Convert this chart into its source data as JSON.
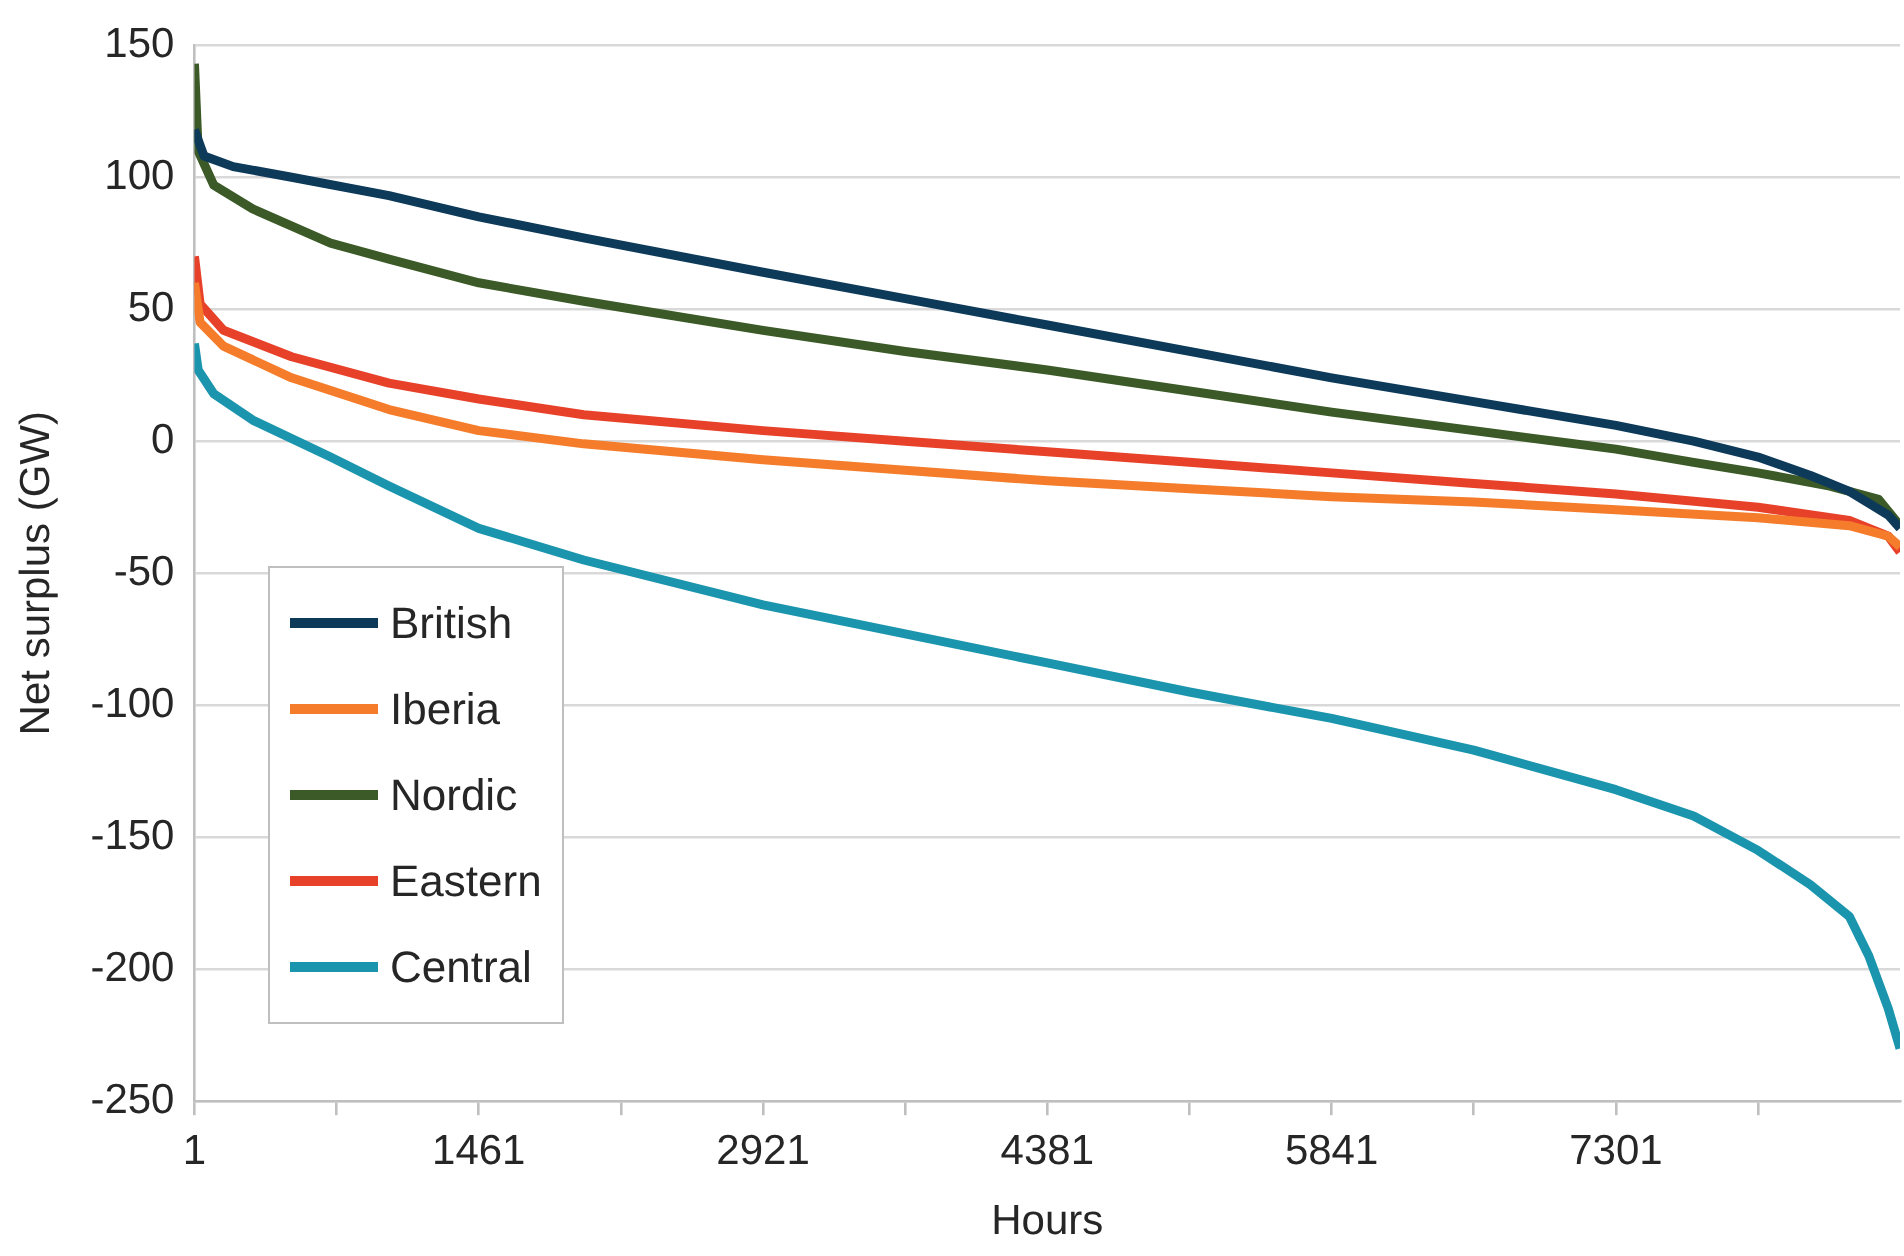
{
  "chart_data": {
    "type": "line",
    "xlabel": "Hours",
    "ylabel": "Net surplus (GW)",
    "xlim": [
      1,
      8760
    ],
    "xticks": [
      1,
      {
        "value": 731,
        "label": null
      },
      1461,
      {
        "value": 2191,
        "label": null
      },
      2921,
      {
        "value": 3651,
        "label": null
      },
      4381,
      {
        "value": 5111,
        "label": null
      },
      5841,
      {
        "value": 6571,
        "label": null
      },
      7301,
      {
        "value": 8031,
        "label": null
      }
    ],
    "ylim": [
      -250,
      150
    ],
    "yticks": [
      -250,
      -200,
      -150,
      -100,
      -50,
      0,
      50,
      100,
      150
    ],
    "grid": "y",
    "legend": "bottom left",
    "marker": "none",
    "line_style": "solid",
    "series": [
      {
        "name": "British",
        "color": "#0e3a5a",
        "x": [
          1,
          50,
          200,
          500,
          1000,
          1461,
          2000,
          2921,
          3651,
          4381,
          5111,
          5841,
          6571,
          7301,
          7700,
          8031,
          8300,
          8500,
          8700,
          8760
        ],
        "values": [
          118,
          108,
          104,
          100,
          93,
          85,
          77,
          64,
          54,
          44,
          34,
          24,
          15,
          6,
          0,
          -6,
          -13,
          -19,
          -28,
          -33
        ]
      },
      {
        "name": "Iberia",
        "color": "#f57c2a",
        "x": [
          1,
          30,
          150,
          500,
          1000,
          1461,
          2000,
          2921,
          3651,
          4381,
          5111,
          5841,
          6571,
          7301,
          8031,
          8500,
          8700,
          8760
        ],
        "values": [
          60,
          45,
          36,
          24,
          12,
          4,
          -1,
          -7,
          -11,
          -15,
          -18,
          -21,
          -23,
          -26,
          -29,
          -32,
          -36,
          -40
        ]
      },
      {
        "name": "Nordic",
        "color": "#3b5a27",
        "x": [
          1,
          20,
          100,
          300,
          700,
          1000,
          1461,
          2000,
          2921,
          3651,
          4381,
          5111,
          5841,
          6571,
          7301,
          7700,
          8031,
          8400,
          8650,
          8760
        ],
        "values": [
          143,
          110,
          97,
          88,
          75,
          69,
          60,
          53,
          42,
          34,
          27,
          19,
          11,
          4,
          -3,
          -8,
          -12,
          -17,
          -22,
          -32
        ]
      },
      {
        "name": "Eastern",
        "color": "#e8412a",
        "x": [
          1,
          30,
          150,
          500,
          1000,
          1461,
          2000,
          2921,
          3651,
          4381,
          5111,
          5841,
          6571,
          7301,
          8031,
          8500,
          8700,
          8760
        ],
        "values": [
          70,
          52,
          42,
          32,
          22,
          16,
          10,
          4,
          0,
          -4,
          -8,
          -12,
          -16,
          -20,
          -25,
          -30,
          -36,
          -42
        ]
      },
      {
        "name": "Central",
        "color": "#1b95ad",
        "x": [
          1,
          20,
          100,
          300,
          700,
          1000,
          1461,
          2000,
          2921,
          3651,
          4381,
          5111,
          5841,
          6571,
          7301,
          7700,
          8031,
          8300,
          8500,
          8600,
          8700,
          8760
        ],
        "values": [
          37,
          27,
          18,
          8,
          -6,
          -17,
          -33,
          -45,
          -62,
          -73,
          -84,
          -95,
          -105,
          -117,
          -132,
          -142,
          -155,
          -168,
          -180,
          -195,
          -215,
          -230
        ]
      }
    ]
  }
}
